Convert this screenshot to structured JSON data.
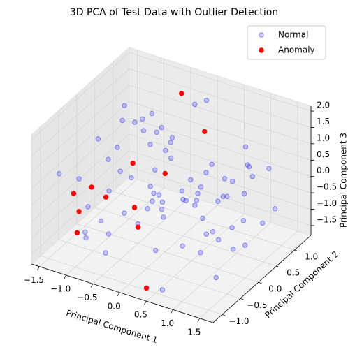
{
  "chart_data": {
    "type": "scatter3d",
    "title": "3D PCA of Test Data with Outlier Detection",
    "xlabel": "Principal Component 1",
    "ylabel": "Principal Component 2",
    "zlabel": "Principal Component 3",
    "xlim": [
      -1.65,
      1.75
    ],
    "ylim": [
      -1.25,
      1.45
    ],
    "zlim": [
      -1.8,
      2.15
    ],
    "xticks": [
      {
        "value": -1.5,
        "label": "−1.5"
      },
      {
        "value": -1.0,
        "label": "−1.0"
      },
      {
        "value": -0.5,
        "label": "−0.5"
      },
      {
        "value": 0.0,
        "label": "0.0"
      },
      {
        "value": 0.5,
        "label": "0.5"
      },
      {
        "value": 1.0,
        "label": "1.0"
      },
      {
        "value": 1.5,
        "label": "1.5"
      }
    ],
    "yticks": [
      {
        "value": -1.0,
        "label": "−1.0"
      },
      {
        "value": -0.5,
        "label": "−0.5"
      },
      {
        "value": 0.0,
        "label": "0.0"
      },
      {
        "value": 0.5,
        "label": "0.5"
      },
      {
        "value": 1.0,
        "label": "1.0"
      }
    ],
    "zticks": [
      {
        "value": -1.5,
        "label": "−1.5"
      },
      {
        "value": -1.0,
        "label": "−1.0"
      },
      {
        "value": -0.5,
        "label": "−0.5"
      },
      {
        "value": 0.0,
        "label": "0.0"
      },
      {
        "value": 0.5,
        "label": "0.5"
      },
      {
        "value": 1.0,
        "label": "1.0"
      },
      {
        "value": 1.5,
        "label": "1.5"
      },
      {
        "value": 2.0,
        "label": "2.0"
      }
    ],
    "grid": true,
    "legend": "upper right",
    "series": [
      {
        "name": "Normal",
        "color": "blue",
        "alpha": 0.2,
        "x": [
          -1.3,
          -1.1,
          -0.9,
          -0.7,
          -0.5,
          -0.3,
          -0.1,
          0.1,
          0.3,
          0.5,
          0.7,
          0.9,
          1.1,
          1.3,
          1.5,
          -1.2,
          -1.0,
          -0.8,
          -0.6,
          -0.4,
          -0.2,
          0.0,
          0.2,
          0.4,
          0.6,
          0.8,
          1.0,
          1.2,
          1.4,
          -1.4,
          -1.1,
          -0.85,
          -0.65,
          -0.45,
          -0.25,
          -0.05,
          0.15,
          0.35,
          0.55,
          0.75,
          0.95,
          1.15,
          1.35,
          1.55,
          -1.25,
          -0.95,
          -0.75,
          -0.55,
          -0.35,
          -0.15,
          0.05,
          0.25,
          0.45,
          0.65,
          0.85,
          1.05,
          1.25,
          1.45,
          -1.0,
          -0.7,
          -0.4,
          -0.1,
          0.2,
          0.5,
          0.8,
          1.1,
          -1.3,
          -0.6,
          0.0,
          0.6,
          1.2,
          -0.9,
          -0.3,
          0.3,
          0.9,
          1.5
        ],
        "y": [
          0.8,
          -0.5,
          1.1,
          0.2,
          -0.9,
          0.6,
          -0.2,
          1.0,
          -0.7,
          0.4,
          -1.1,
          0.9,
          -0.3,
          0.5,
          -0.8,
          -0.6,
          0.3,
          -1.0,
          0.9,
          0.0,
          1.2,
          -0.4,
          0.7,
          -0.9,
          0.1,
          1.1,
          -0.6,
          0.4,
          -0.2,
          0.5,
          1.0,
          -0.3,
          0.6,
          -1.1,
          0.3,
          0.9,
          -0.7,
          1.2,
          -0.1,
          0.5,
          -0.9,
          1.0,
          0.2,
          -0.4,
          0.0,
          -0.8,
          0.7,
          -0.5,
          1.1,
          -0.9,
          0.4,
          -0.2,
          0.8,
          -1.0,
          0.6,
          0.1,
          -0.7,
          0.9,
          1.2,
          -0.2,
          0.5,
          -0.6,
          1.0,
          -0.9,
          0.3,
          0.7,
          -1.0,
          0.8,
          0.2,
          -0.4,
          1.1,
          0.4,
          -1.1,
          0.6,
          -0.5,
          0.0
        ],
        "z": [
          1.2,
          -0.5,
          0.3,
          1.6,
          -1.2,
          0.8,
          -0.1,
          1.9,
          -0.9,
          0.5,
          -1.5,
          1.0,
          -0.3,
          0.7,
          -1.0,
          0.4,
          1.4,
          -0.8,
          0.1,
          1.7,
          -1.3,
          0.6,
          -0.4,
          1.1,
          -1.6,
          0.2,
          0.9,
          -0.6,
          1.3,
          -0.2,
          0.7,
          -1.4,
          1.5,
          0.0,
          -0.7,
          1.8,
          0.3,
          -1.1,
          0.8,
          -0.2,
          1.2,
          -1.3,
          0.5,
          -0.5,
          1.0,
          -0.9,
          0.4,
          1.6,
          -1.5,
          0.2,
          -0.3,
          1.4,
          -0.8,
          0.6,
          -1.2,
          0.9,
          0.1,
          -0.6,
          -1.0,
          0.5,
          1.3,
          -0.4,
          0.0,
          1.1,
          -1.3,
          0.7,
          0.9,
          -1.6,
          1.5,
          -0.9,
          0.3,
          -0.4,
          1.0,
          -1.2,
          0.6,
          -0.8
        ]
      },
      {
        "name": "Anomaly",
        "color": "red",
        "alpha": 1,
        "x": [
          -0.3,
          0.2,
          -0.6,
          -0.2,
          -1.3,
          -1.1,
          -0.9,
          -1.2,
          -0.5,
          -1.1,
          -0.3,
          0.4
        ],
        "y": [
          0.9,
          0.8,
          0.0,
          0.3,
          -0.6,
          -0.4,
          -0.3,
          -0.6,
          -0.1,
          -0.8,
          -0.3,
          -1.1
        ],
        "z": [
          2.0,
          1.2,
          0.6,
          0.2,
          -0.1,
          0.0,
          -0.3,
          -0.6,
          -0.6,
          -1.0,
          -0.9,
          -1.6
        ]
      }
    ]
  }
}
